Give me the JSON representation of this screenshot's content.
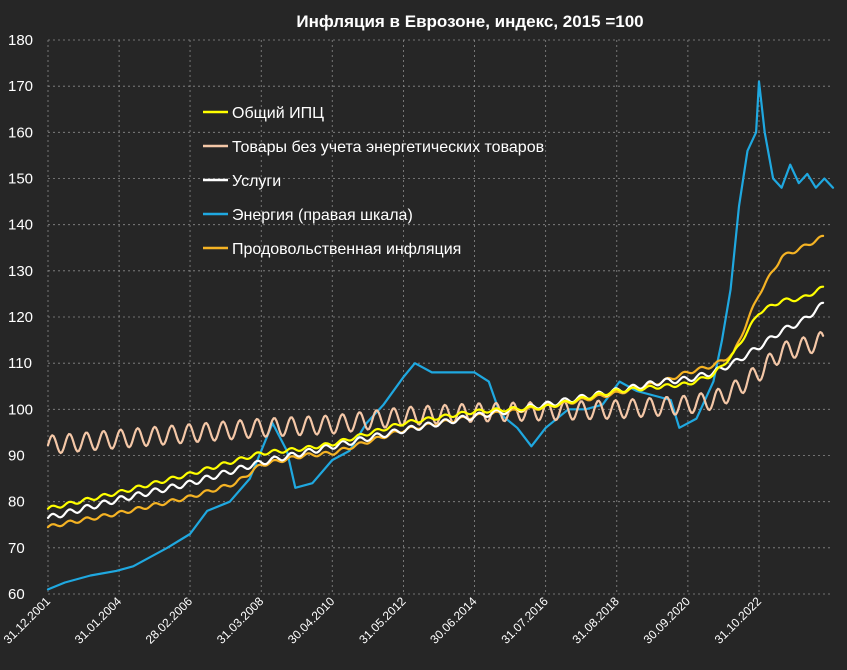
{
  "chart_data": {
    "type": "line",
    "title": "Инфляция в Еврозоне, индекс, 2015 =100",
    "xlabel": "",
    "ylabel": "",
    "xlim": [
      "2001-12-31",
      "2024-12-31"
    ],
    "ylim": [
      60,
      180
    ],
    "y_ticks": [
      60,
      70,
      80,
      90,
      100,
      110,
      120,
      130,
      140,
      150,
      160,
      170,
      180
    ],
    "x_ticks": [
      "31.12.2001",
      "31.01.2004",
      "28.02.2006",
      "31.03.2008",
      "30.04.2010",
      "31.05.2012",
      "30.06.2014",
      "31.07.2016",
      "31.08.2018",
      "30.09.2020",
      "31.10.2022"
    ],
    "grid": true,
    "legend_position": "upper-left inside",
    "series": [
      {
        "name": "Общий ИПЦ",
        "color": "#FFFF00",
        "seasonal_amplitude": 0.4,
        "points": [
          [
            "2001-12-31",
            78.5
          ],
          [
            "2004-01-31",
            82
          ],
          [
            "2006-02-28",
            86
          ],
          [
            "2008-03-31",
            90.5
          ],
          [
            "2009-06-30",
            91.5
          ],
          [
            "2010-04-30",
            92.5
          ],
          [
            "2012-05-31",
            97
          ],
          [
            "2014-06-30",
            99.5
          ],
          [
            "2015-06-30",
            100
          ],
          [
            "2016-07-31",
            100.5
          ],
          [
            "2018-08-31",
            104
          ],
          [
            "2020-09-30",
            105.5
          ],
          [
            "2021-06-30",
            107.5
          ],
          [
            "2022-01-31",
            112
          ],
          [
            "2022-10-31",
            121
          ],
          [
            "2023-06-30",
            123.5
          ],
          [
            "2024-01-31",
            124
          ],
          [
            "2024-09-30",
            126.5
          ]
        ]
      },
      {
        "name": "Товары без учета энергетических товаров",
        "color": "#F4C7A7",
        "seasonal_amplitude": 2.0,
        "points": [
          [
            "2001-12-31",
            92.3
          ],
          [
            "2004-01-31",
            93.6
          ],
          [
            "2006-02-28",
            94.8
          ],
          [
            "2008-03-31",
            96
          ],
          [
            "2010-04-30",
            96.7
          ],
          [
            "2012-05-31",
            98.5
          ],
          [
            "2014-06-30",
            99.3
          ],
          [
            "2016-07-31",
            99.6
          ],
          [
            "2018-08-31",
            100
          ],
          [
            "2020-09-30",
            101
          ],
          [
            "2021-06-30",
            102
          ],
          [
            "2022-01-31",
            104
          ],
          [
            "2022-10-31",
            108
          ],
          [
            "2023-06-30",
            112.5
          ],
          [
            "2024-01-31",
            113.5
          ],
          [
            "2024-09-30",
            115
          ]
        ]
      },
      {
        "name": "Услуги",
        "color": "#FFFFFF",
        "seasonal_amplitude": 0.6,
        "points": [
          [
            "2001-12-31",
            76.5
          ],
          [
            "2004-01-31",
            80.5
          ],
          [
            "2006-02-28",
            84
          ],
          [
            "2008-03-31",
            88.5
          ],
          [
            "2010-04-30",
            92
          ],
          [
            "2012-05-31",
            95.5
          ],
          [
            "2014-06-30",
            98.5
          ],
          [
            "2016-07-31",
            101
          ],
          [
            "2018-08-31",
            104
          ],
          [
            "2019-12-31",
            106
          ],
          [
            "2020-09-30",
            106.5
          ],
          [
            "2021-06-30",
            108
          ],
          [
            "2022-01-31",
            110
          ],
          [
            "2022-10-31",
            113.5
          ],
          [
            "2023-06-30",
            117
          ],
          [
            "2024-01-31",
            119
          ],
          [
            "2024-09-30",
            123
          ]
        ]
      },
      {
        "name": "Энергия (правая шкала)",
        "color": "#1FA8E0",
        "seasonal_amplitude": 0,
        "points": [
          [
            "2001-12-31",
            61
          ],
          [
            "2002-06-30",
            62.5
          ],
          [
            "2003-03-31",
            64
          ],
          [
            "2003-12-31",
            65
          ],
          [
            "2004-06-30",
            66
          ],
          [
            "2005-06-30",
            70
          ],
          [
            "2006-02-28",
            73
          ],
          [
            "2006-08-31",
            78
          ],
          [
            "2007-04-30",
            80
          ],
          [
            "2007-11-30",
            85
          ],
          [
            "2008-07-31",
            97
          ],
          [
            "2008-12-31",
            91
          ],
          [
            "2009-03-31",
            83
          ],
          [
            "2009-09-30",
            84
          ],
          [
            "2010-04-30",
            89
          ],
          [
            "2010-10-31",
            91
          ],
          [
            "2011-04-30",
            97
          ],
          [
            "2011-10-31",
            101
          ],
          [
            "2012-05-31",
            107
          ],
          [
            "2012-09-30",
            110
          ],
          [
            "2013-03-31",
            108
          ],
          [
            "2013-09-30",
            108
          ],
          [
            "2014-06-30",
            108
          ],
          [
            "2014-11-30",
            106
          ],
          [
            "2015-03-31",
            99
          ],
          [
            "2015-09-30",
            96
          ],
          [
            "2016-02-29",
            92
          ],
          [
            "2016-07-31",
            96
          ],
          [
            "2017-03-31",
            100
          ],
          [
            "2017-09-30",
            100
          ],
          [
            "2018-03-31",
            101
          ],
          [
            "2018-09-30",
            106
          ],
          [
            "2019-03-31",
            104
          ],
          [
            "2019-09-30",
            103
          ],
          [
            "2020-03-31",
            102
          ],
          [
            "2020-06-30",
            96
          ],
          [
            "2020-12-31",
            98
          ],
          [
            "2021-06-30",
            106
          ],
          [
            "2021-09-30",
            115
          ],
          [
            "2021-12-31",
            126
          ],
          [
            "2022-03-31",
            144
          ],
          [
            "2022-06-30",
            156
          ],
          [
            "2022-09-30",
            160
          ],
          [
            "2022-10-31",
            171
          ],
          [
            "2022-12-31",
            160
          ],
          [
            "2023-03-31",
            150
          ],
          [
            "2023-06-30",
            148
          ],
          [
            "2023-09-30",
            153
          ],
          [
            "2023-12-31",
            149
          ],
          [
            "2024-03-31",
            151
          ],
          [
            "2024-06-30",
            148
          ],
          [
            "2024-09-30",
            150
          ],
          [
            "2024-12-31",
            148
          ]
        ]
      },
      {
        "name": "Продовольственная инфляция",
        "color": "#F5B324",
        "seasonal_amplitude": 0.4,
        "points": [
          [
            "2001-12-31",
            74.5
          ],
          [
            "2002-06-30",
            75.3
          ],
          [
            "2004-01-31",
            77.5
          ],
          [
            "2006-02-28",
            81
          ],
          [
            "2007-06-30",
            84
          ],
          [
            "2008-03-31",
            88
          ],
          [
            "2009-06-30",
            90
          ],
          [
            "2010-04-30",
            90.5
          ],
          [
            "2012-05-31",
            95.5
          ],
          [
            "2014-06-30",
            98.5
          ],
          [
            "2016-07-31",
            100.5
          ],
          [
            "2018-08-31",
            103.5
          ],
          [
            "2019-12-31",
            106
          ],
          [
            "2020-09-30",
            108
          ],
          [
            "2021-06-30",
            109.5
          ],
          [
            "2022-01-31",
            112
          ],
          [
            "2022-10-31",
            125
          ],
          [
            "2023-06-30",
            133
          ],
          [
            "2024-01-31",
            135
          ],
          [
            "2024-09-30",
            137.5
          ]
        ]
      }
    ]
  }
}
